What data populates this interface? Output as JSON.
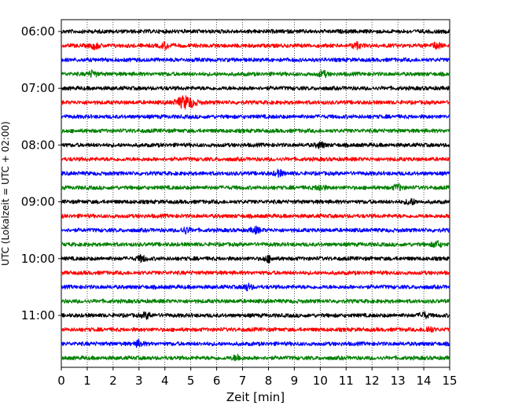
{
  "chart_data": {
    "type": "line",
    "title": "",
    "xlabel": "Zeit  [min]",
    "ylabel": "UTC (Lokalzeit = UTC + 02:00)",
    "xlim": [
      0,
      15
    ],
    "x_ticks": [
      "0",
      "1",
      "2",
      "3",
      "4",
      "5",
      "6",
      "7",
      "8",
      "9",
      "10",
      "11",
      "12",
      "13",
      "14",
      "15"
    ],
    "y_ticks": [
      "06:00",
      "07:00",
      "08:00",
      "09:00",
      "10:00",
      "11:00"
    ],
    "grid": "vertical dotted",
    "colors": [
      "#000000",
      "#ff0000",
      "#0000ff",
      "#008000"
    ],
    "series": [
      {
        "start": "06:00",
        "color": "#000000",
        "events": []
      },
      {
        "start": "06:15",
        "color": "#ff0000",
        "events": [
          1.3,
          4.0,
          11.4,
          14.5
        ]
      },
      {
        "start": "06:30",
        "color": "#0000ff",
        "events": []
      },
      {
        "start": "06:45",
        "color": "#008000",
        "events": [
          1.2,
          10.1
        ]
      },
      {
        "start": "07:00",
        "color": "#000000",
        "events": []
      },
      {
        "start": "07:15",
        "color": "#ff0000",
        "events": [
          4.8
        ]
      },
      {
        "start": "07:30",
        "color": "#0000ff",
        "events": []
      },
      {
        "start": "07:45",
        "color": "#008000",
        "events": []
      },
      {
        "start": "08:00",
        "color": "#000000",
        "events": [
          10.0
        ]
      },
      {
        "start": "08:15",
        "color": "#ff0000",
        "events": []
      },
      {
        "start": "08:30",
        "color": "#0000ff",
        "events": [
          8.4
        ]
      },
      {
        "start": "08:45",
        "color": "#008000",
        "events": [
          10.0,
          13.0
        ]
      },
      {
        "start": "09:00",
        "color": "#000000",
        "events": [
          13.5
        ]
      },
      {
        "start": "09:15",
        "color": "#ff0000",
        "events": []
      },
      {
        "start": "09:30",
        "color": "#0000ff",
        "events": [
          4.8,
          7.5
        ]
      },
      {
        "start": "09:45",
        "color": "#008000",
        "events": [
          14.5
        ]
      },
      {
        "start": "10:00",
        "color": "#000000",
        "events": [
          3.1,
          8.0
        ]
      },
      {
        "start": "10:15",
        "color": "#ff0000",
        "events": []
      },
      {
        "start": "10:30",
        "color": "#0000ff",
        "events": [
          7.2
        ]
      },
      {
        "start": "10:45",
        "color": "#008000",
        "events": []
      },
      {
        "start": "11:00",
        "color": "#000000",
        "events": [
          3.3,
          14.0
        ]
      },
      {
        "start": "11:15",
        "color": "#ff0000",
        "events": [
          14.2
        ]
      },
      {
        "start": "11:30",
        "color": "#0000ff",
        "events": [
          3.0
        ]
      },
      {
        "start": "11:45",
        "color": "#008000",
        "events": [
          6.8
        ]
      }
    ]
  }
}
